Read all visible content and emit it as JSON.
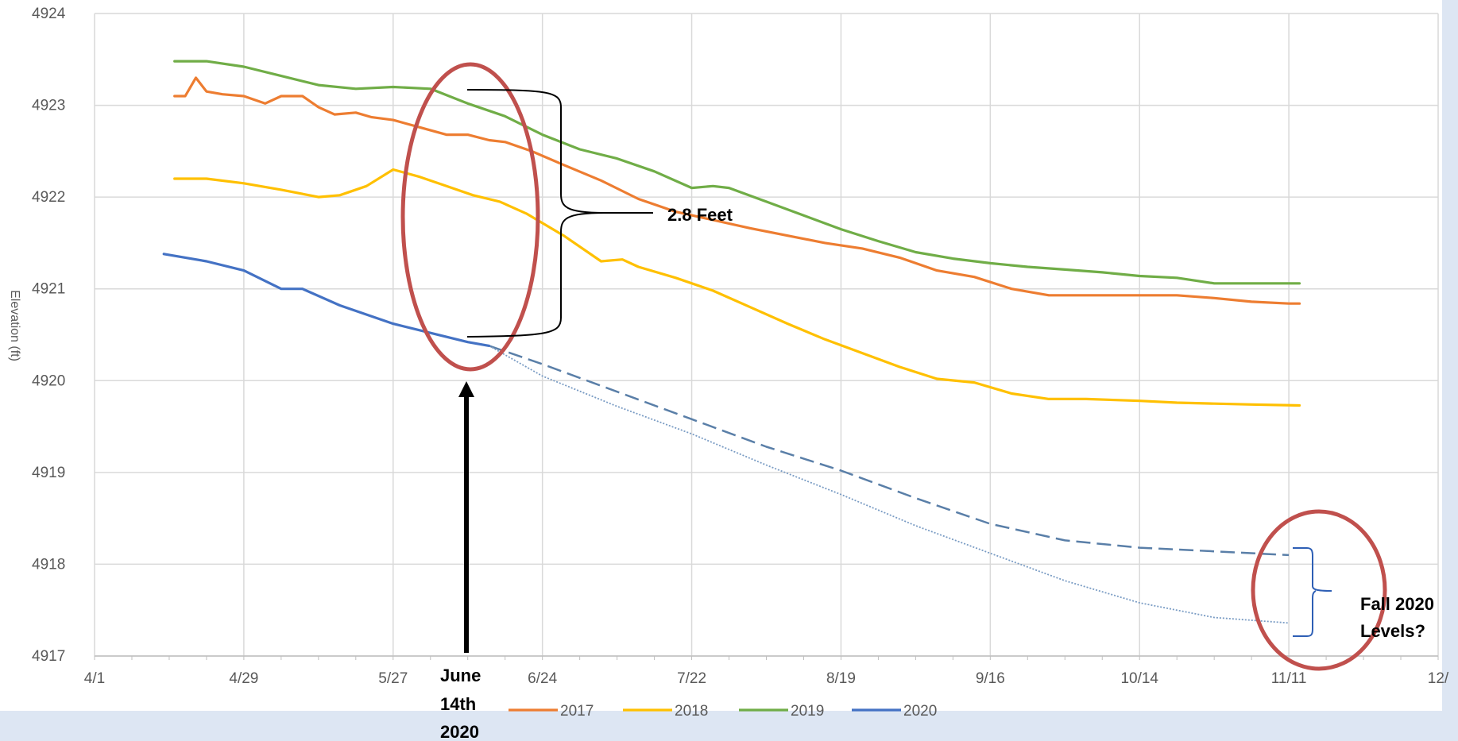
{
  "chart_data": {
    "type": "line",
    "title": "",
    "xlabel": "",
    "ylabel": "Elevation (ft)",
    "ylim": [
      4917,
      4924
    ],
    "grid": true,
    "legend_position": "bottom",
    "x_ticks": [
      "4/1",
      "4/29",
      "5/27",
      "6/24",
      "7/22",
      "8/19",
      "9/16",
      "10/14",
      "11/11",
      "12/"
    ],
    "y_ticks": [
      "4917",
      "4918",
      "4919",
      "4920",
      "4921",
      "4922",
      "4923",
      "4924"
    ],
    "series": [
      {
        "name": "2017",
        "color": "#ed7d31",
        "x": [
          "4/16",
          "4/18",
          "4/20",
          "4/22",
          "4/25",
          "4/29",
          "5/3",
          "5/6",
          "5/10",
          "5/13",
          "5/16",
          "5/20",
          "5/23",
          "5/27",
          "6/1",
          "6/6",
          "6/10",
          "6/14",
          "6/17",
          "6/22",
          "6/28",
          "7/5",
          "7/12",
          "7/19",
          "7/26",
          "8/2",
          "8/9",
          "8/16",
          "8/23",
          "8/30",
          "9/6",
          "9/13",
          "9/20",
          "9/27",
          "10/4",
          "10/14",
          "10/21",
          "10/28",
          "11/4",
          "11/11",
          "11/13"
        ],
        "values": [
          4923.1,
          4923.1,
          4923.3,
          4923.15,
          4923.12,
          4923.1,
          4923.02,
          4923.1,
          4923.1,
          4922.98,
          4922.9,
          4922.92,
          4922.87,
          4922.84,
          4922.76,
          4922.68,
          4922.68,
          4922.62,
          4922.6,
          4922.5,
          4922.35,
          4922.18,
          4921.98,
          4921.84,
          4921.75,
          4921.66,
          4921.58,
          4921.5,
          4921.44,
          4921.34,
          4921.2,
          4921.13,
          4921.0,
          4920.93,
          4920.93,
          4920.93,
          4920.93,
          4920.9,
          4920.86,
          4920.84,
          4920.84
        ]
      },
      {
        "name": "2018",
        "color": "#ffc000",
        "x": [
          "4/16",
          "4/22",
          "4/29",
          "5/6",
          "5/13",
          "5/17",
          "5/22",
          "5/27",
          "6/1",
          "6/6",
          "6/11",
          "6/16",
          "6/21",
          "6/28",
          "7/5",
          "7/9",
          "7/12",
          "7/19",
          "7/26",
          "8/2",
          "8/9",
          "8/16",
          "8/23",
          "8/30",
          "9/6",
          "9/13",
          "9/20",
          "9/27",
          "10/4",
          "10/14",
          "10/21",
          "10/28",
          "11/4",
          "11/13"
        ],
        "values": [
          4922.2,
          4922.2,
          4922.15,
          4922.08,
          4922.0,
          4922.02,
          4922.12,
          4922.3,
          4922.22,
          4922.12,
          4922.02,
          4921.95,
          4921.82,
          4921.58,
          4921.3,
          4921.32,
          4921.24,
          4921.12,
          4920.98,
          4920.8,
          4920.62,
          4920.45,
          4920.3,
          4920.15,
          4920.02,
          4919.98,
          4919.86,
          4919.8,
          4919.8,
          4919.78,
          4919.76,
          4919.75,
          4919.74,
          4919.73
        ]
      },
      {
        "name": "2019",
        "color": "#70ad47",
        "x": [
          "4/16",
          "4/22",
          "4/29",
          "5/6",
          "5/13",
          "5/20",
          "5/27",
          "6/3",
          "6/10",
          "6/17",
          "6/24",
          "7/1",
          "7/8",
          "7/15",
          "7/22",
          "7/26",
          "7/29",
          "8/5",
          "8/12",
          "8/19",
          "8/26",
          "9/2",
          "9/9",
          "9/16",
          "9/23",
          "9/30",
          "10/7",
          "10/14",
          "10/21",
          "10/28",
          "11/4",
          "11/13"
        ],
        "values": [
          4923.48,
          4923.48,
          4923.42,
          4923.32,
          4923.22,
          4923.18,
          4923.2,
          4923.18,
          4923.02,
          4922.88,
          4922.68,
          4922.52,
          4922.42,
          4922.28,
          4922.1,
          4922.12,
          4922.1,
          4921.95,
          4921.8,
          4921.65,
          4921.52,
          4921.4,
          4921.33,
          4921.28,
          4921.24,
          4921.21,
          4921.18,
          4921.14,
          4921.12,
          4921.06,
          4921.06,
          4921.06
        ]
      },
      {
        "name": "2020",
        "color": "#4472c4",
        "x": [
          "4/14",
          "4/22",
          "4/29",
          "5/6",
          "5/10",
          "5/17",
          "5/27",
          "6/3",
          "6/10",
          "6/14"
        ],
        "values": [
          4921.38,
          4921.3,
          4921.2,
          4921.0,
          4921.0,
          4920.82,
          4920.62,
          4920.52,
          4920.42,
          4920.38
        ]
      }
    ],
    "projections": [
      {
        "style": "dashed",
        "color": "#5a7fa8",
        "x": [
          "6/14",
          "6/24",
          "7/8",
          "7/22",
          "8/5",
          "8/19",
          "9/2",
          "9/16",
          "9/30",
          "10/14",
          "10/28",
          "11/11"
        ],
        "values": [
          4920.38,
          4920.18,
          4919.88,
          4919.58,
          4919.28,
          4919.02,
          4918.72,
          4918.44,
          4918.26,
          4918.18,
          4918.14,
          4918.1
        ]
      },
      {
        "style": "dotted",
        "color": "#7a9cc4",
        "x": [
          "6/14",
          "6/24",
          "7/8",
          "7/22",
          "8/5",
          "8/19",
          "9/2",
          "9/16",
          "9/30",
          "10/14",
          "10/28",
          "11/11"
        ],
        "values": [
          4920.38,
          4920.05,
          4919.72,
          4919.42,
          4919.08,
          4918.76,
          4918.42,
          4918.12,
          4917.82,
          4917.58,
          4917.42,
          4917.36
        ]
      }
    ],
    "annotations": {
      "difference_label": "2.8 Feet",
      "date_label": [
        "June",
        "14th",
        "2020"
      ],
      "fall_label": [
        "Fall 2020",
        "Levels?"
      ]
    }
  }
}
